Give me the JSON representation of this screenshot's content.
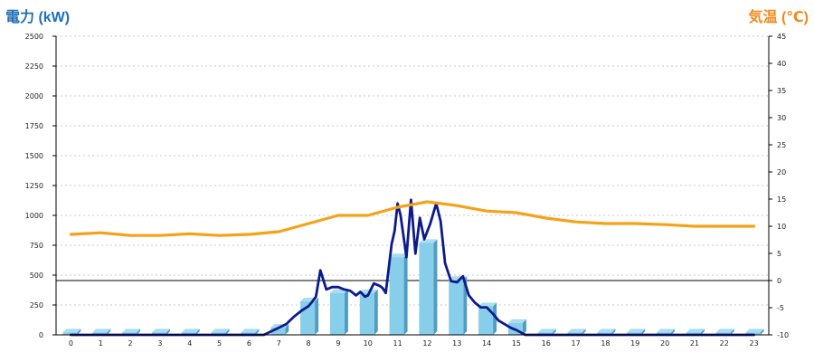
{
  "left_axis_title": "電力 (kW)",
  "right_axis_title": "気温 (℃)",
  "colors": {
    "bar_face": "#87ceeb",
    "bar_side": "#4f9dc0",
    "power_line": "#0c1a8c",
    "temp_line": "#f5a21b",
    "grid": "#b8b8b8",
    "baseline": "#000000"
  },
  "chart_data": {
    "type": "bar",
    "grid": true,
    "categories": [
      "0",
      "1",
      "2",
      "3",
      "4",
      "5",
      "6",
      "7",
      "8",
      "9",
      "10",
      "11",
      "12",
      "13",
      "14",
      "15",
      "16",
      "17",
      "18",
      "19",
      "20",
      "21",
      "22",
      "23"
    ],
    "left_axis": {
      "label": "電力 (kW)",
      "ylim": [
        0,
        2500
      ],
      "ticks": [
        0,
        250,
        500,
        750,
        1000,
        1250,
        1500,
        1750,
        2000,
        2250,
        2500
      ]
    },
    "right_axis": {
      "label": "気温 (℃)",
      "ylim": [
        -10,
        45
      ],
      "ticks": [
        -10,
        -5,
        0,
        5,
        10,
        15,
        20,
        25,
        30,
        35,
        40,
        45
      ],
      "zero_reference_line": 0
    },
    "series": [
      {
        "type": "bar",
        "axis": "left",
        "values": [
          20,
          20,
          20,
          20,
          20,
          20,
          20,
          60,
          280,
          350,
          350,
          650,
          770,
          460,
          240,
          100,
          20,
          20,
          20,
          20,
          20,
          20,
          20,
          20
        ]
      },
      {
        "type": "line",
        "axis": "left",
        "x": [
          0,
          1,
          2,
          3,
          4,
          5,
          6,
          6.5,
          7,
          7.25,
          7.5,
          7.75,
          8,
          8.1,
          8.25,
          8.4,
          8.6,
          8.8,
          9,
          9.2,
          9.4,
          9.6,
          9.75,
          9.9,
          10,
          10.2,
          10.4,
          10.5,
          10.6,
          10.8,
          10.9,
          11,
          11.1,
          11.3,
          11.45,
          11.6,
          11.75,
          11.9,
          12.1,
          12.3,
          12.45,
          12.6,
          12.8,
          13,
          13.2,
          13.4,
          13.6,
          13.8,
          14,
          14.2,
          14.4,
          14.6,
          14.8,
          15,
          15.3,
          16,
          17,
          18,
          19,
          20,
          21,
          22,
          23
        ],
        "values": [
          0,
          0,
          0,
          0,
          0,
          0,
          0,
          0,
          60,
          90,
          150,
          200,
          240,
          270,
          320,
          540,
          380,
          400,
          400,
          380,
          370,
          330,
          360,
          320,
          330,
          430,
          410,
          390,
          350,
          760,
          870,
          1100,
          1000,
          650,
          1130,
          680,
          980,
          800,
          930,
          1100,
          950,
          600,
          450,
          440,
          490,
          330,
          270,
          230,
          230,
          180,
          120,
          90,
          60,
          40,
          0,
          0,
          0,
          0,
          0,
          0,
          0,
          0,
          0
        ]
      },
      {
        "type": "line",
        "axis": "right",
        "x": [
          0,
          1,
          2,
          3,
          4,
          5,
          6,
          7,
          8,
          9,
          10,
          11,
          12,
          13,
          14,
          15,
          16,
          17,
          18,
          19,
          20,
          21,
          22,
          23
        ],
        "values": [
          8.5,
          8.8,
          8.3,
          8.3,
          8.6,
          8.3,
          8.5,
          9.0,
          10.5,
          12.0,
          12.0,
          13.5,
          14.5,
          13.8,
          12.8,
          12.5,
          11.5,
          10.8,
          10.5,
          10.5,
          10.3,
          10.0,
          10.0,
          10.0
        ]
      }
    ]
  }
}
